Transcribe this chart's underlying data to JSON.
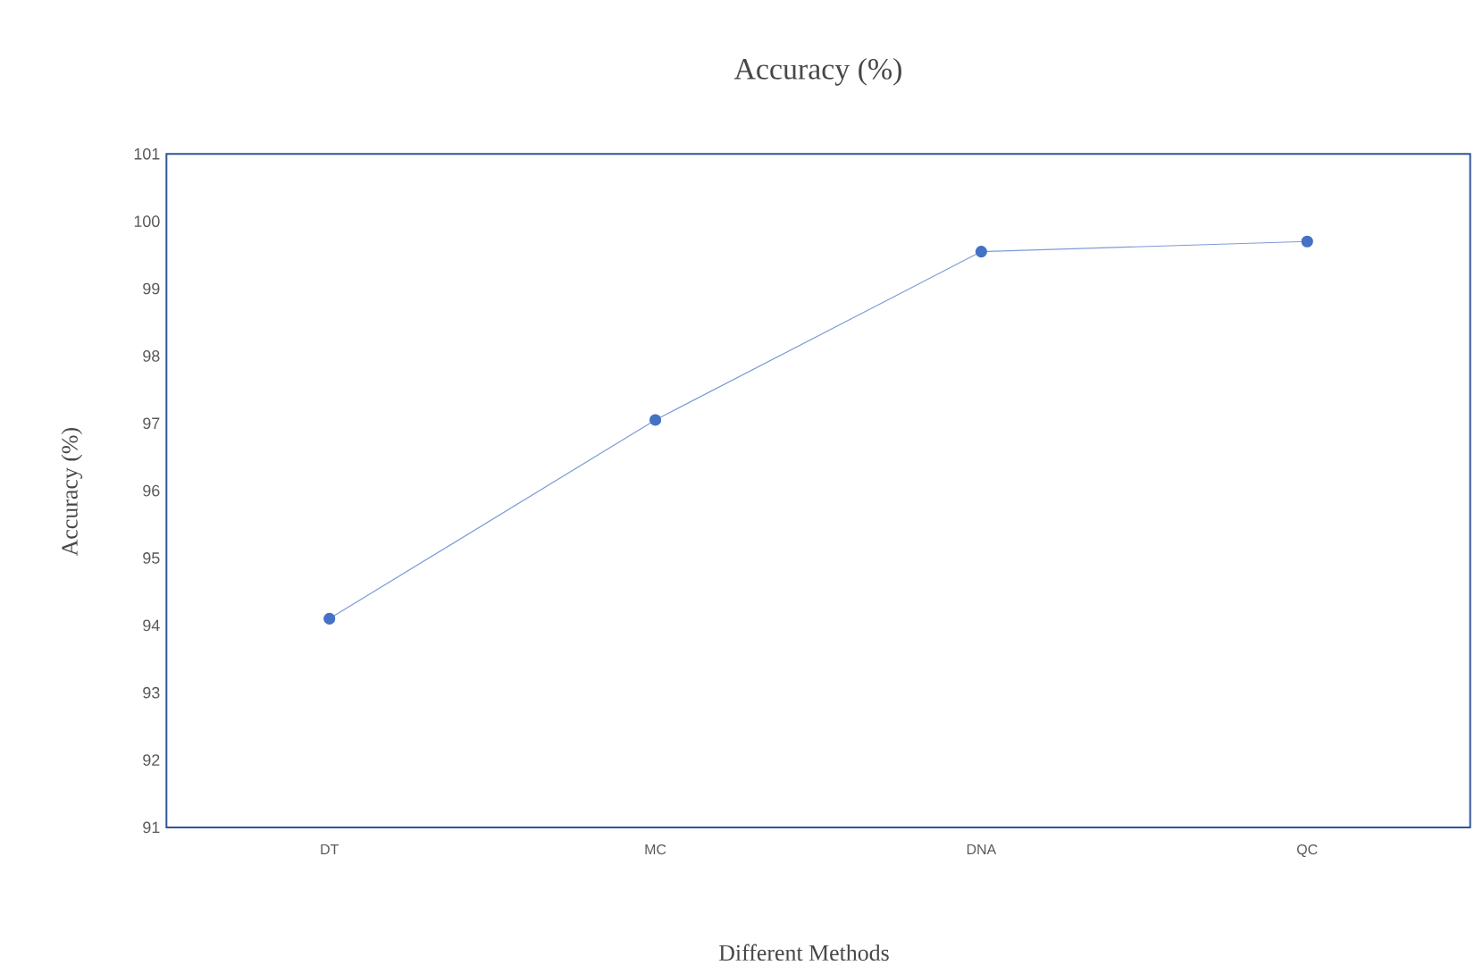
{
  "chart_data": {
    "type": "line",
    "title": "Accuracy  (%)",
    "xlabel": "Different Methods",
    "ylabel": "Accuracy (%)",
    "categories": [
      "DT",
      "MC",
      "DNA",
      "QC"
    ],
    "series": [
      {
        "color": "#4472c4",
        "values": [
          94.1,
          97.05,
          99.55,
          99.7
        ]
      }
    ],
    "ylim": [
      91,
      101
    ],
    "yticks": [
      91,
      92,
      93,
      94,
      95,
      96,
      97,
      98,
      99,
      100,
      101
    ],
    "grid": false,
    "marker": "circle",
    "line_style": "solid"
  }
}
